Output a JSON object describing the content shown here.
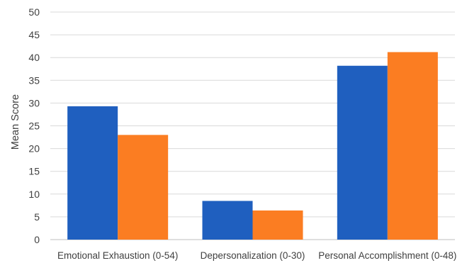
{
  "chart_data": {
    "type": "bar",
    "ylabel": "Mean Score",
    "ylim": [
      0,
      50
    ],
    "yticks": [
      0,
      5,
      10,
      15,
      20,
      25,
      30,
      35,
      40,
      45,
      50
    ],
    "categories": [
      "Emotional Exhaustion (0-54)",
      "Depersonalization (0-30)",
      "Personal Accomplishment (0-48)"
    ],
    "series": [
      {
        "color": "#1f5fbf",
        "values": [
          29.3,
          8.5,
          38.2
        ]
      },
      {
        "color": "#fb7d22",
        "values": [
          23.0,
          6.4,
          41.2
        ]
      }
    ],
    "grid": true,
    "legend": "none"
  }
}
